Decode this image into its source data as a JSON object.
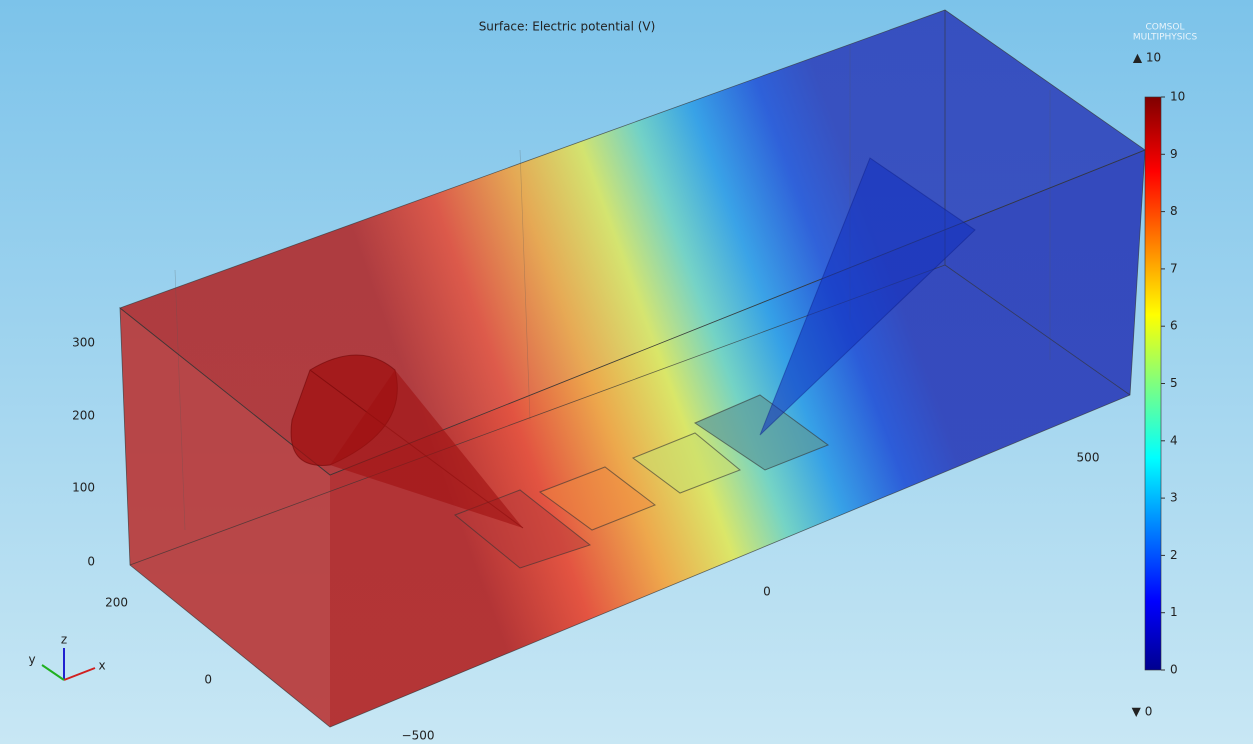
{
  "title": "Surface: Electric potential (V)",
  "logo": {
    "line1": "COMSOL",
    "line2": "MULTIPHYSICS"
  },
  "colorbar": {
    "max_label": "▲ 10",
    "min_label": "▼ 0",
    "range": [
      0,
      10
    ],
    "ticks": [
      0,
      1,
      2,
      3,
      4,
      5,
      6,
      7,
      8,
      9,
      10
    ]
  },
  "axes": {
    "z_ticks": [
      0,
      100,
      200,
      300
    ],
    "y_ticks": [
      200,
      0
    ],
    "x_ticks": [
      {
        "value": -500,
        "label": "−500"
      },
      0,
      500
    ]
  },
  "triad": {
    "x": "x",
    "y": "y",
    "z": "z"
  }
}
